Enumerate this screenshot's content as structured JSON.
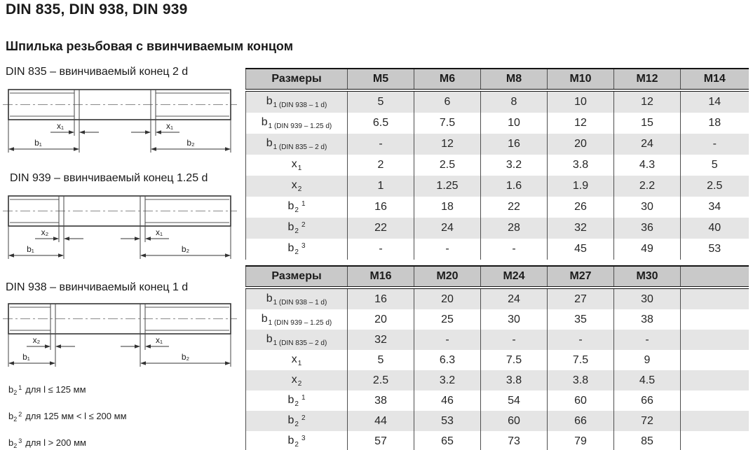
{
  "page": {
    "title": "DIN 835, DIN 938, DIN 939",
    "subtitle": "Шпилька резьбовая с ввинчиваемым концом"
  },
  "drawings": [
    {
      "label": "DIN 835 – ввинчиваемый конец 2 d",
      "dim_left_x": "x₁",
      "dim_right_x": "x₁",
      "dim_left_b": "b₁",
      "dim_right_b": "b₂"
    },
    {
      "label": "DIN 939 – ввинчиваемый конец 1.25 d",
      "dim_left_x": "x₂",
      "dim_right_x": "x₁",
      "dim_left_b": "b₁",
      "dim_right_b": "b₂"
    },
    {
      "label": "DIN 938 – ввинчиваемый конец 1 d",
      "dim_left_x": "x₂",
      "dim_right_x": "x₁",
      "dim_left_b": "b₁",
      "dim_right_b": "b₂"
    }
  ],
  "tables": [
    {
      "header_label": "Размеры",
      "columns": [
        "M5",
        "M6",
        "M8",
        "M10",
        "M12",
        "M14"
      ],
      "rows": [
        {
          "label": {
            "base": "b",
            "sub": "1 (DIN 938 – 1 d)",
            "sup": ""
          },
          "values": [
            "5",
            "6",
            "8",
            "10",
            "12",
            "14"
          ]
        },
        {
          "label": {
            "base": "b",
            "sub": "1 (DIN 939 – 1.25 d)",
            "sup": ""
          },
          "values": [
            "6.5",
            "7.5",
            "10",
            "12",
            "15",
            "18"
          ]
        },
        {
          "label": {
            "base": "b",
            "sub": "1 (DIN 835 – 2 d)",
            "sup": ""
          },
          "values": [
            "-",
            "12",
            "16",
            "20",
            "24",
            "-"
          ]
        },
        {
          "label": {
            "base": "x",
            "sub": "1",
            "sup": ""
          },
          "values": [
            "2",
            "2.5",
            "3.2",
            "3.8",
            "4.3",
            "5"
          ]
        },
        {
          "label": {
            "base": "x",
            "sub": "2",
            "sup": ""
          },
          "values": [
            "1",
            "1.25",
            "1.6",
            "1.9",
            "2.2",
            "2.5"
          ]
        },
        {
          "label": {
            "base": "b",
            "sub": "2",
            "sup": "1"
          },
          "values": [
            "16",
            "18",
            "22",
            "26",
            "30",
            "34"
          ]
        },
        {
          "label": {
            "base": "b",
            "sub": "2",
            "sup": "2"
          },
          "values": [
            "22",
            "24",
            "28",
            "32",
            "36",
            "40"
          ]
        },
        {
          "label": {
            "base": "b",
            "sub": "2",
            "sup": "3"
          },
          "values": [
            "-",
            "-",
            "-",
            "45",
            "49",
            "53"
          ]
        }
      ]
    },
    {
      "header_label": "Размеры",
      "columns": [
        "M16",
        "M20",
        "M24",
        "M27",
        "M30",
        ""
      ],
      "rows": [
        {
          "label": {
            "base": "b",
            "sub": "1 (DIN 938 – 1 d)",
            "sup": ""
          },
          "values": [
            "16",
            "20",
            "24",
            "27",
            "30",
            ""
          ]
        },
        {
          "label": {
            "base": "b",
            "sub": "1 (DIN 939 – 1.25 d)",
            "sup": ""
          },
          "values": [
            "20",
            "25",
            "30",
            "35",
            "38",
            ""
          ]
        },
        {
          "label": {
            "base": "b",
            "sub": "1 (DIN 835 – 2 d)",
            "sup": ""
          },
          "values": [
            "32",
            "-",
            "-",
            "-",
            "-",
            ""
          ]
        },
        {
          "label": {
            "base": "x",
            "sub": "1",
            "sup": ""
          },
          "values": [
            "5",
            "6.3",
            "7.5",
            "7.5",
            "9",
            ""
          ]
        },
        {
          "label": {
            "base": "x",
            "sub": "2",
            "sup": ""
          },
          "values": [
            "2.5",
            "3.2",
            "3.8",
            "3.8",
            "4.5",
            ""
          ]
        },
        {
          "label": {
            "base": "b",
            "sub": "2",
            "sup": "1"
          },
          "values": [
            "38",
            "46",
            "54",
            "60",
            "66",
            ""
          ]
        },
        {
          "label": {
            "base": "b",
            "sub": "2",
            "sup": "2"
          },
          "values": [
            "44",
            "53",
            "60",
            "66",
            "72",
            ""
          ]
        },
        {
          "label": {
            "base": "b",
            "sub": "2",
            "sup": "3"
          },
          "values": [
            "57",
            "65",
            "73",
            "79",
            "85",
            ""
          ]
        }
      ]
    }
  ],
  "footnotes": [
    {
      "base": "b",
      "sub": "2",
      "sup": "1",
      "text": "для l ≤ 125 мм"
    },
    {
      "base": "b",
      "sub": "2",
      "sup": "2",
      "text": "для 125 мм < l ≤ 200 мм"
    },
    {
      "base": "b",
      "sub": "2",
      "sup": "3",
      "text": "для l > 200 мм"
    }
  ]
}
